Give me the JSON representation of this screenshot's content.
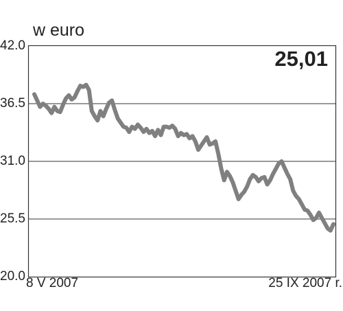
{
  "chart_data": {
    "type": "line",
    "unit_label": "w euro",
    "last_value_label": "25,01",
    "x_labels": {
      "start": "8 V 2007",
      "end": "25 IX 2007 r."
    },
    "y_ticks": [
      "42.0",
      "36.5",
      "31.0",
      "25.5",
      "20.0"
    ],
    "ylim": [
      20.0,
      42.0
    ],
    "grid": true,
    "series_color": "#808080",
    "values": [
      37.4,
      36.8,
      36.2,
      36.5,
      36.3,
      36.0,
      35.6,
      36.2,
      35.8,
      35.7,
      36.4,
      37.0,
      37.3,
      36.9,
      37.1,
      37.7,
      38.2,
      38.1,
      38.3,
      37.8,
      35.8,
      35.3,
      34.9,
      35.8,
      35.3,
      36.0,
      36.6,
      36.8,
      35.9,
      35.1,
      34.7,
      34.3,
      34.2,
      33.8,
      34.3,
      34.1,
      34.5,
      34.2,
      33.8,
      34.1,
      33.7,
      33.9,
      33.4,
      34.0,
      33.5,
      34.3,
      34.3,
      34.2,
      34.4,
      34.1,
      33.4,
      33.7,
      33.5,
      33.6,
      33.2,
      33.4,
      32.9,
      32.1,
      32.5,
      32.9,
      33.3,
      32.6,
      32.7,
      32.9,
      31.7,
      30.3,
      29.2,
      30.0,
      29.6,
      29.0,
      28.2,
      27.4,
      27.8,
      28.1,
      28.6,
      29.3,
      29.7,
      29.5,
      29.1,
      29.4,
      29.5,
      28.8,
      29.2,
      29.8,
      30.3,
      30.8,
      31.0,
      30.4,
      29.8,
      29.3,
      28.2,
      27.7,
      27.4,
      26.9,
      26.4,
      26.3,
      25.9,
      25.4,
      25.6,
      26.1,
      25.6,
      25.1,
      24.6,
      24.4,
      25.01
    ]
  }
}
